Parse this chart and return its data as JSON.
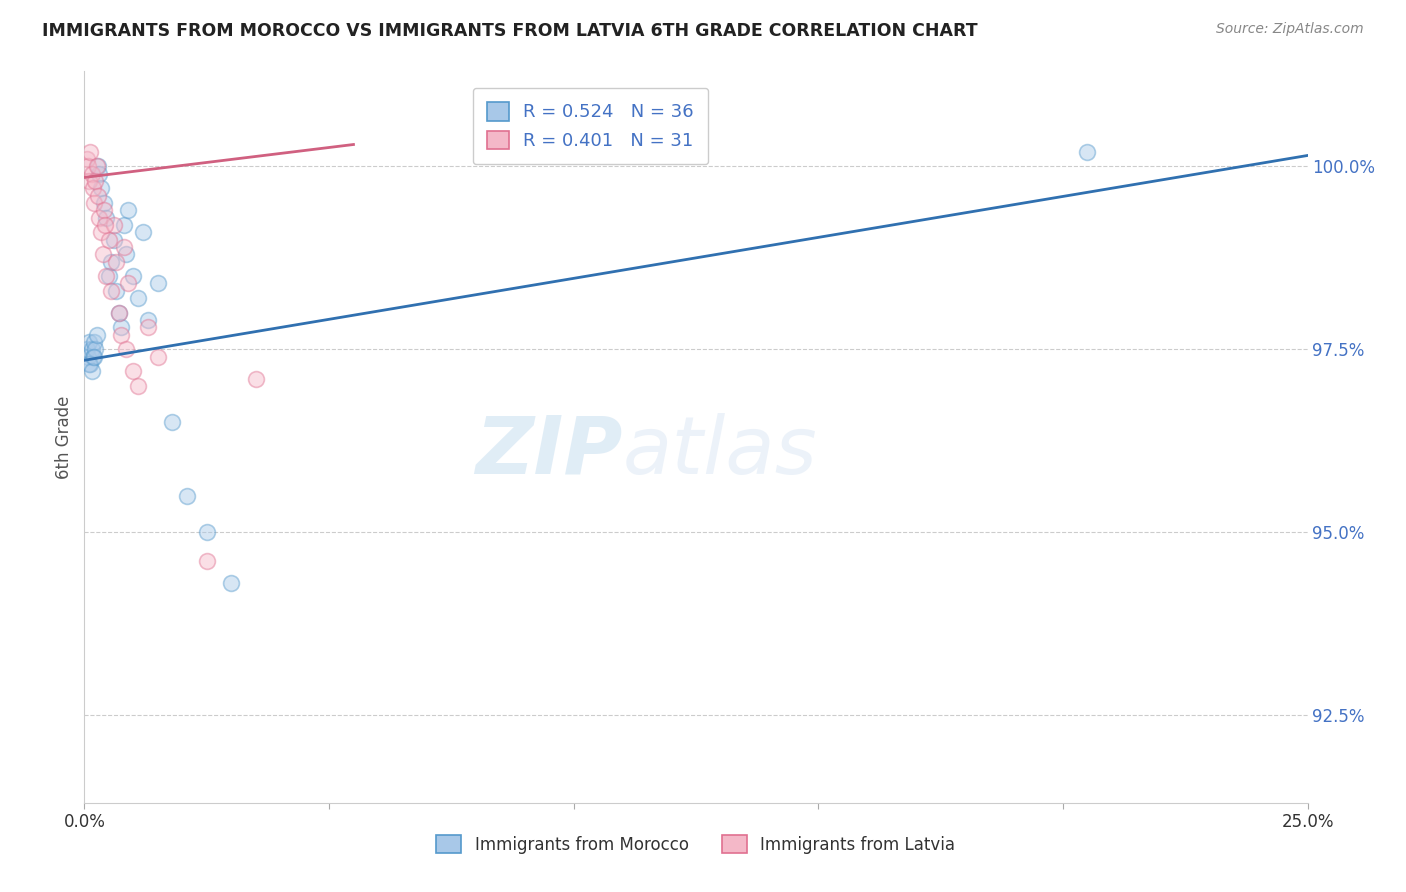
{
  "title": "IMMIGRANTS FROM MOROCCO VS IMMIGRANTS FROM LATVIA 6TH GRADE CORRELATION CHART",
  "source": "Source: ZipAtlas.com",
  "ylabel": "6th Grade",
  "xlim": [
    0.0,
    25.0
  ],
  "ylim": [
    91.3,
    101.3
  ],
  "yticks": [
    92.5,
    95.0,
    97.5,
    100.0
  ],
  "ytick_labels": [
    "92.5%",
    "95.0%",
    "97.5%",
    "100.0%"
  ],
  "legend_text_blue": "R = 0.524   N = 36",
  "legend_text_pink": "R = 0.401   N = 31",
  "legend_label_blue": "Immigrants from Morocco",
  "legend_label_pink": "Immigrants from Latvia",
  "blue_color": "#a8c8e8",
  "pink_color": "#f4b8c8",
  "blue_edge_color": "#5599cc",
  "pink_edge_color": "#e07090",
  "blue_line_color": "#3070b0",
  "pink_line_color": "#d06080",
  "legend_r_color": "#4472c4",
  "blue_scatter_x": [
    0.05,
    0.08,
    0.1,
    0.12,
    0.15,
    0.18,
    0.2,
    0.22,
    0.25,
    0.28,
    0.3,
    0.35,
    0.4,
    0.45,
    0.5,
    0.55,
    0.6,
    0.65,
    0.7,
    0.75,
    0.8,
    0.85,
    0.9,
    1.0,
    1.1,
    1.2,
    1.3,
    1.5,
    1.8,
    2.1,
    2.5,
    3.0,
    0.1,
    0.15,
    0.2,
    20.5
  ],
  "blue_scatter_y": [
    97.5,
    97.4,
    97.6,
    97.3,
    97.5,
    97.4,
    97.6,
    97.5,
    97.7,
    100.0,
    99.9,
    99.7,
    99.5,
    99.3,
    98.5,
    98.7,
    99.0,
    98.3,
    98.0,
    97.8,
    99.2,
    98.8,
    99.4,
    98.5,
    98.2,
    99.1,
    97.9,
    98.4,
    96.5,
    95.5,
    95.0,
    94.3,
    97.3,
    97.2,
    97.4,
    100.2
  ],
  "pink_scatter_x": [
    0.05,
    0.07,
    0.1,
    0.12,
    0.15,
    0.18,
    0.2,
    0.22,
    0.25,
    0.28,
    0.3,
    0.35,
    0.38,
    0.4,
    0.45,
    0.5,
    0.55,
    0.6,
    0.65,
    0.7,
    0.75,
    0.8,
    0.85,
    0.9,
    1.0,
    1.1,
    1.3,
    1.5,
    2.5,
    3.5,
    0.42
  ],
  "pink_scatter_y": [
    100.1,
    100.0,
    99.8,
    100.2,
    99.9,
    99.7,
    99.5,
    99.8,
    100.0,
    99.6,
    99.3,
    99.1,
    98.8,
    99.4,
    98.5,
    99.0,
    98.3,
    99.2,
    98.7,
    98.0,
    97.7,
    98.9,
    97.5,
    98.4,
    97.2,
    97.0,
    97.8,
    97.4,
    94.6,
    97.1,
    99.2
  ],
  "blue_trend_x": [
    0.0,
    25.0
  ],
  "blue_trend_y": [
    97.35,
    100.15
  ],
  "pink_trend_x": [
    0.0,
    5.5
  ],
  "pink_trend_y": [
    99.85,
    100.3
  ],
  "watermark_zip": "ZIP",
  "watermark_atlas": "atlas",
  "background_color": "#ffffff",
  "grid_color": "#cccccc",
  "title_color": "#222222",
  "marker_size": 130,
  "marker_alpha": 0.45,
  "marker_linewidth": 1.2,
  "xtick_positions": [
    0.0,
    5.0,
    10.0,
    15.0,
    20.0,
    25.0
  ],
  "xtick_labels": [
    "0.0%",
    "",
    "",
    "",
    "",
    "25.0%"
  ]
}
